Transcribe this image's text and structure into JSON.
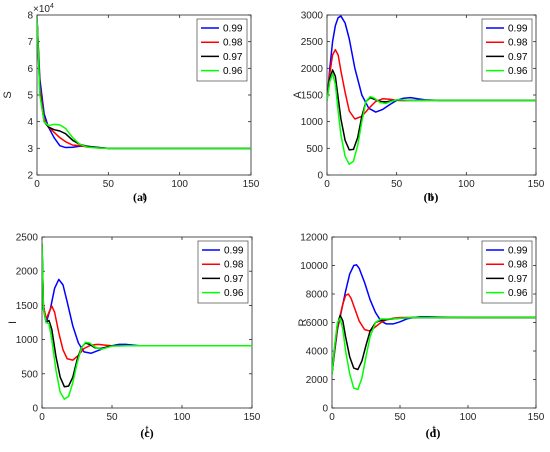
{
  "figure": {
    "panels": [
      {
        "id": "a",
        "caption": "(a)",
        "ylabel": "S",
        "xlabel": "t",
        "multiplier": "×10",
        "multiplier_exp": "4",
        "yticks": [
          2,
          3,
          4,
          5,
          6,
          7,
          8
        ],
        "xticks": [
          0,
          50,
          100,
          150
        ]
      },
      {
        "id": "b",
        "caption": "(b)",
        "ylabel": "A",
        "xlabel": "t",
        "yticks": [
          0,
          500,
          1000,
          1500,
          2000,
          2500,
          3000
        ],
        "xticks": [
          0,
          50,
          100,
          150
        ]
      },
      {
        "id": "c",
        "caption": "(c)",
        "ylabel": "I",
        "xlabel": "t",
        "yticks": [
          0,
          500,
          1000,
          1500,
          2000,
          2500
        ],
        "xticks": [
          0,
          50,
          100,
          150
        ]
      },
      {
        "id": "d",
        "caption": "(d)",
        "ylabel": "R",
        "xlabel": "t",
        "yticks": [
          0,
          2000,
          4000,
          6000,
          8000,
          10000,
          12000
        ],
        "xticks": [
          0,
          50,
          100,
          150
        ]
      }
    ]
  },
  "chart_data": [
    {
      "type": "line",
      "panel": "(a)",
      "xlabel": "t",
      "ylabel": "S",
      "y_multiplier": "×10^4",
      "xlim": [
        0,
        150
      ],
      "ylim": [
        2,
        8
      ],
      "grid": false,
      "legend_position": "top-right",
      "series": [
        {
          "name": "0.99",
          "color": "#0000FF",
          "x": [
            0,
            2,
            5,
            8,
            12,
            16,
            20,
            25,
            30,
            35,
            40,
            45,
            50,
            60,
            70,
            80,
            100,
            150
          ],
          "y": [
            7.9,
            5.6,
            4.3,
            3.8,
            3.4,
            3.1,
            3.03,
            3.04,
            3.08,
            3.08,
            3.05,
            3.02,
            3.0,
            3.0,
            3.0,
            3.0,
            3.0,
            3.0
          ]
        },
        {
          "name": "0.98",
          "color": "#FF0000",
          "x": [
            0,
            2,
            5,
            8,
            12,
            16,
            20,
            25,
            30,
            35,
            40,
            45,
            50,
            60,
            70,
            80,
            100,
            150
          ],
          "y": [
            7.9,
            5.3,
            4.1,
            3.8,
            3.6,
            3.4,
            3.25,
            3.12,
            3.1,
            3.05,
            3.03,
            3.01,
            3.0,
            3.0,
            3.0,
            3.0,
            3.0,
            3.0
          ]
        },
        {
          "name": "0.97",
          "color": "#000000",
          "x": [
            0,
            2,
            5,
            8,
            12,
            16,
            20,
            25,
            30,
            35,
            40,
            45,
            50,
            60,
            70,
            80,
            100,
            150
          ],
          "y": [
            7.9,
            5.1,
            4.0,
            3.8,
            3.7,
            3.65,
            3.55,
            3.3,
            3.15,
            3.08,
            3.04,
            3.02,
            3.0,
            3.0,
            3.0,
            3.0,
            3.0,
            3.0
          ]
        },
        {
          "name": "0.96",
          "color": "#00FF00",
          "x": [
            0,
            2,
            5,
            8,
            12,
            16,
            20,
            25,
            30,
            35,
            40,
            45,
            50,
            60,
            70,
            80,
            100,
            150
          ],
          "y": [
            7.9,
            5.0,
            4.0,
            3.85,
            3.9,
            3.88,
            3.75,
            3.4,
            3.15,
            3.05,
            3.02,
            3.01,
            3.0,
            3.0,
            3.0,
            3.0,
            3.0,
            3.0
          ]
        }
      ]
    },
    {
      "type": "line",
      "panel": "(b)",
      "xlabel": "t",
      "ylabel": "A",
      "xlim": [
        0,
        150
      ],
      "ylim": [
        0,
        3000
      ],
      "grid": false,
      "legend_position": "top-right",
      "series": [
        {
          "name": "0.99",
          "color": "#0000FF",
          "x": [
            0,
            2,
            4,
            6,
            8,
            10,
            13,
            16,
            20,
            25,
            30,
            35,
            40,
            45,
            50,
            55,
            60,
            65,
            70,
            80,
            100,
            150
          ],
          "y": [
            1400,
            2000,
            2500,
            2800,
            2950,
            2980,
            2850,
            2550,
            2000,
            1500,
            1250,
            1180,
            1230,
            1320,
            1400,
            1440,
            1450,
            1430,
            1410,
            1400,
            1400,
            1400
          ]
        },
        {
          "name": "0.98",
          "color": "#FF0000",
          "x": [
            0,
            2,
            4,
            6,
            8,
            10,
            13,
            16,
            20,
            25,
            30,
            35,
            40,
            45,
            50,
            55,
            60,
            70,
            80,
            100,
            150
          ],
          "y": [
            1400,
            1900,
            2250,
            2350,
            2250,
            1950,
            1550,
            1200,
            1050,
            1100,
            1250,
            1380,
            1430,
            1420,
            1400,
            1395,
            1400,
            1400,
            1400,
            1400,
            1400
          ]
        },
        {
          "name": "0.97",
          "color": "#000000",
          "x": [
            0,
            2,
            4,
            6,
            8,
            10,
            13,
            16,
            19,
            22,
            25,
            28,
            31,
            34,
            38,
            42,
            46,
            50,
            60,
            70,
            100,
            150
          ],
          "y": [
            1400,
            1800,
            1970,
            1850,
            1450,
            1050,
            650,
            470,
            480,
            700,
            1100,
            1380,
            1450,
            1420,
            1380,
            1370,
            1390,
            1405,
            1400,
            1400,
            1400,
            1400
          ]
        },
        {
          "name": "0.96",
          "color": "#00FF00",
          "x": [
            0,
            2,
            4,
            6,
            8,
            10,
            13,
            16,
            19,
            22,
            25,
            28,
            31,
            34,
            38,
            42,
            46,
            50,
            60,
            70,
            100,
            150
          ],
          "y": [
            1400,
            1750,
            1900,
            1700,
            1200,
            750,
            350,
            200,
            260,
            550,
            1000,
            1380,
            1470,
            1440,
            1360,
            1340,
            1380,
            1410,
            1400,
            1400,
            1400,
            1400
          ]
        }
      ]
    },
    {
      "type": "line",
      "panel": "(c)",
      "xlabel": "t",
      "ylabel": "I",
      "xlim": [
        0,
        150
      ],
      "ylim": [
        0,
        2500
      ],
      "grid": false,
      "legend_position": "top-right",
      "series": [
        {
          "name": "0.99",
          "color": "#0000FF",
          "x": [
            0,
            1,
            3,
            6,
            9,
            12,
            15,
            18,
            22,
            26,
            30,
            35,
            40,
            45,
            50,
            55,
            60,
            65,
            70,
            80,
            100,
            150
          ],
          "y": [
            2400,
            1500,
            1250,
            1450,
            1750,
            1880,
            1800,
            1550,
            1200,
            950,
            820,
            800,
            840,
            880,
            910,
            930,
            930,
            920,
            910,
            910,
            910,
            910
          ]
        },
        {
          "name": "0.98",
          "color": "#FF0000",
          "x": [
            0,
            1,
            3,
            5,
            7,
            9,
            12,
            15,
            18,
            22,
            26,
            30,
            35,
            40,
            45,
            50,
            60,
            70,
            100,
            150
          ],
          "y": [
            2400,
            1500,
            1300,
            1400,
            1490,
            1400,
            1100,
            850,
            720,
            700,
            770,
            870,
            920,
            930,
            920,
            910,
            910,
            910,
            910,
            910
          ]
        },
        {
          "name": "0.97",
          "color": "#000000",
          "x": [
            0,
            1,
            3,
            5,
            7,
            10,
            13,
            16,
            19,
            22,
            25,
            28,
            31,
            34,
            38,
            42,
            46,
            50,
            60,
            70,
            100,
            150
          ],
          "y": [
            2400,
            1450,
            1250,
            1280,
            1150,
            750,
            450,
            310,
            320,
            450,
            700,
            880,
            950,
            930,
            880,
            870,
            890,
            910,
            910,
            910,
            910,
            910
          ]
        },
        {
          "name": "0.96",
          "color": "#00FF00",
          "x": [
            0,
            1,
            3,
            5,
            7,
            10,
            13,
            16,
            19,
            22,
            25,
            28,
            31,
            34,
            38,
            42,
            46,
            50,
            60,
            70,
            100,
            150
          ],
          "y": [
            2400,
            1450,
            1250,
            1230,
            1000,
            550,
            230,
            130,
            170,
            370,
            650,
            870,
            960,
            950,
            890,
            860,
            880,
            905,
            910,
            910,
            910,
            910
          ]
        }
      ]
    },
    {
      "type": "line",
      "panel": "(d)",
      "xlabel": "t",
      "ylabel": "R",
      "xlim": [
        0,
        150
      ],
      "ylim": [
        0,
        12000
      ],
      "grid": false,
      "legend_position": "top-right",
      "series": [
        {
          "name": "0.99",
          "color": "#0000FF",
          "x": [
            0,
            2,
            4,
            6,
            8,
            10,
            13,
            16,
            18,
            20,
            24,
            28,
            32,
            36,
            40,
            45,
            50,
            55,
            60,
            65,
            70,
            80,
            100,
            150
          ],
          "y": [
            2400,
            4000,
            5500,
            6400,
            7300,
            8200,
            9400,
            10000,
            10050,
            9800,
            8800,
            7600,
            6700,
            6100,
            5900,
            5900,
            6050,
            6250,
            6350,
            6400,
            6400,
            6380,
            6350,
            6350
          ]
        },
        {
          "name": "0.98",
          "color": "#FF0000",
          "x": [
            0,
            2,
            4,
            6,
            8,
            10,
            12,
            14,
            17,
            20,
            24,
            28,
            32,
            36,
            40,
            45,
            50,
            60,
            70,
            100,
            150
          ],
          "y": [
            2400,
            4100,
            5600,
            6500,
            7300,
            7900,
            8000,
            7700,
            6900,
            6100,
            5500,
            5400,
            5700,
            6000,
            6200,
            6300,
            6350,
            6350,
            6350,
            6350,
            6350
          ]
        },
        {
          "name": "0.97",
          "color": "#000000",
          "x": [
            0,
            2,
            4,
            6,
            8,
            10,
            13,
            16,
            19,
            22,
            25,
            28,
            32,
            36,
            40,
            45,
            50,
            60,
            70,
            100,
            150
          ],
          "y": [
            2400,
            4300,
            5900,
            6500,
            6100,
            5000,
            3600,
            2800,
            2700,
            3300,
            4400,
            5400,
            6000,
            6150,
            6200,
            6250,
            6300,
            6350,
            6350,
            6350,
            6350
          ]
        },
        {
          "name": "0.96",
          "color": "#00FF00",
          "x": [
            0,
            2,
            4,
            6,
            8,
            10,
            13,
            16,
            19,
            22,
            25,
            28,
            32,
            36,
            40,
            45,
            50,
            60,
            70,
            100,
            150
          ],
          "y": [
            2400,
            4400,
            6000,
            6300,
            5500,
            4000,
            2400,
            1400,
            1300,
            2100,
            3600,
            5000,
            6000,
            6250,
            6250,
            6250,
            6300,
            6350,
            6350,
            6350,
            6350
          ]
        }
      ]
    }
  ]
}
